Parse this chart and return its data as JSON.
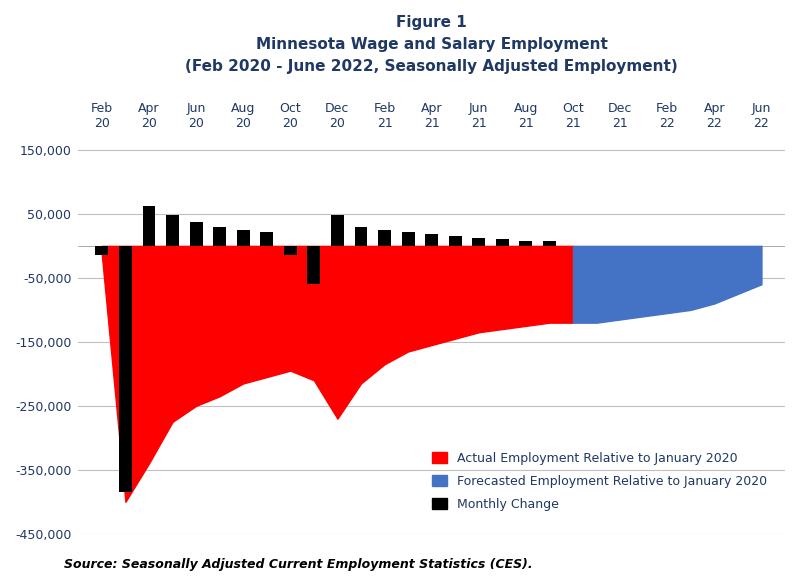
{
  "title_line1": "Figure 1",
  "title_line2": "Minnesota Wage and Salary Employment",
  "title_line3": "(Feb 2020 - June 2022, Seasonally Adjusted Employment)",
  "source_text": "Source: Seasonally Adjusted Current Employment Statistics (CES).",
  "ylim": [
    -450000,
    175000
  ],
  "yticks": [
    -450000,
    -350000,
    -250000,
    -150000,
    -50000,
    50000,
    150000
  ],
  "ytick_labels": [
    "-450,000",
    "-350,000",
    "-250,000",
    "-150,000",
    "-50,000",
    "50,000",
    "150,000"
  ],
  "background_color": "#ffffff",
  "actual_color": "#FF0000",
  "forecast_color": "#4472C4",
  "bar_color": "#000000",
  "x_labels": [
    "Feb\n20",
    "Apr\n20",
    "Jun\n20",
    "Aug\n20",
    "Oct\n20",
    "Dec\n20",
    "Feb\n21",
    "Apr\n21",
    "Jun\n21",
    "Aug\n21",
    "Oct\n21",
    "Dec\n21",
    "Feb\n22",
    "Apr\n22",
    "Jun\n22"
  ],
  "x_tick_positions": [
    0,
    2,
    4,
    6,
    8,
    10,
    12,
    14,
    16,
    18,
    20,
    22,
    24,
    26,
    28
  ],
  "actual_x": [
    0,
    1,
    2,
    3,
    4,
    5,
    6,
    7,
    8,
    9,
    10,
    11,
    12,
    13,
    14,
    15,
    16,
    17,
    18,
    19,
    20
  ],
  "actual_y": [
    -15000,
    -400000,
    -340000,
    -275000,
    -250000,
    -235000,
    -215000,
    -205000,
    -195000,
    -210000,
    -270000,
    -215000,
    -185000,
    -165000,
    -155000,
    -145000,
    -135000,
    -130000,
    -125000,
    -120000,
    -120000
  ],
  "forecast_x": [
    20,
    21,
    22,
    23,
    24,
    25,
    26,
    27,
    28
  ],
  "forecast_y": [
    -120000,
    -120000,
    -115000,
    -110000,
    -105000,
    -100000,
    -90000,
    -75000,
    -60000
  ],
  "monthly_change_x": [
    0,
    1,
    2,
    3,
    4,
    5,
    6,
    7,
    8,
    9,
    10,
    11,
    12,
    13,
    14,
    15,
    16,
    17,
    18,
    19
  ],
  "monthly_change_y": [
    -15000,
    -385000,
    63000,
    48000,
    38000,
    30000,
    25000,
    22000,
    -15000,
    -60000,
    48000,
    30000,
    25000,
    22000,
    18000,
    15000,
    12000,
    10000,
    8000,
    7000
  ],
  "legend_actual": "Actual Employment Relative to January 2020",
  "legend_forecast": "Forecasted Employment Relative to January 2020",
  "legend_monthly": "Monthly Change",
  "gridline_color": "#C0C0C0",
  "title_color": "#1F3864",
  "tick_label_color": "#1F3864"
}
